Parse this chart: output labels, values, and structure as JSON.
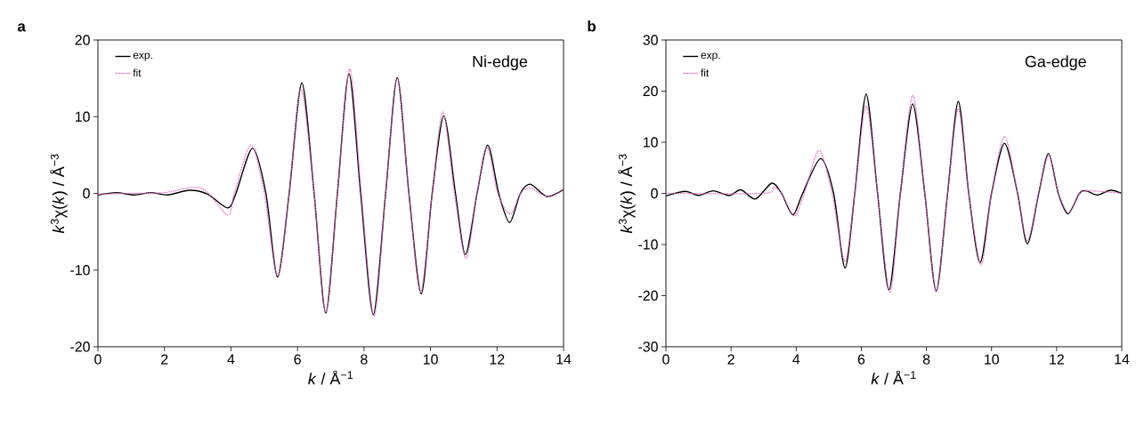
{
  "chart_data": [
    {
      "type": "line",
      "title": "a",
      "xlabel": "*k* / Å$^{−1}$",
      "ylabel": "*k*$^{3}$χ(*k*) / Å$^{−3}$",
      "annotations": [
        "Ni-edge"
      ],
      "xlim": [
        0,
        14
      ],
      "ylim": [
        -20,
        20
      ],
      "xticks": [
        0,
        2,
        4,
        6,
        8,
        10,
        12,
        14
      ],
      "yticks": [
        -20,
        -10,
        0,
        10,
        20
      ],
      "legend": "top left",
      "marker": "none",
      "series": [
        {
          "name": "exp.",
          "color": "#000000",
          "line_style": "solid",
          "x": [
            0,
            0.55,
            1.1,
            1.6,
            2.1,
            2.75,
            3.3,
            3.9,
            4.15,
            4.65,
            5.05,
            5.4,
            5.75,
            6.13,
            6.5,
            6.85,
            7.2,
            7.55,
            7.9,
            8.28,
            8.65,
            9.0,
            9.35,
            9.72,
            10.05,
            10.4,
            10.75,
            11.05,
            11.4,
            11.72,
            12.05,
            12.38,
            12.7,
            13.0,
            13.5,
            14
          ],
          "values": [
            -0.2,
            0.1,
            -0.2,
            0.1,
            -0.2,
            0.4,
            -0.1,
            -1.9,
            0,
            5.9,
            0,
            -10.9,
            0,
            14.4,
            0,
            -15.6,
            0,
            15.6,
            0,
            -15.8,
            0,
            15.1,
            0,
            -13.1,
            0,
            10.1,
            0,
            -8.0,
            0,
            6.3,
            0,
            -3.8,
            0,
            1.2,
            -0.4,
            0.5
          ]
        },
        {
          "name": "fit",
          "color": "#e066c0",
          "line_style": "dotted",
          "x": [
            0,
            1,
            2,
            3.1,
            3.9,
            4.1,
            4.6,
            5.0,
            5.4,
            5.75,
            6.1,
            6.5,
            6.85,
            7.2,
            7.57,
            7.92,
            8.3,
            8.65,
            9.0,
            9.35,
            9.7,
            10.05,
            10.37,
            10.72,
            11.07,
            11.4,
            11.7,
            12.02,
            12.4,
            12.7,
            13.0,
            13.5,
            14
          ],
          "values": [
            -0.1,
            0,
            0.1,
            0.7,
            -2.8,
            0,
            6.3,
            0,
            -10.7,
            0,
            13.6,
            0,
            -15.6,
            0,
            16.2,
            0,
            -16.0,
            0,
            15.0,
            0,
            -12.9,
            0,
            10.6,
            0,
            -8.5,
            0,
            6.0,
            0,
            -2.7,
            0,
            0.7,
            -0.4,
            0.5
          ]
        }
      ]
    },
    {
      "type": "line",
      "title": "b",
      "xlabel": "*k* / Å$^{−1}$",
      "ylabel": "*k*$^{3}$χ(*k*) / Å$^{−3}$",
      "annotations": [
        "Ga-edge"
      ],
      "xlim": [
        0,
        14
      ],
      "ylim": [
        -30,
        30
      ],
      "xticks": [
        0,
        2,
        4,
        6,
        8,
        10,
        12,
        14
      ],
      "yticks": [
        -30,
        -20,
        -10,
        0,
        10,
        20,
        30
      ],
      "legend": "top left",
      "marker": "none",
      "series": [
        {
          "name": "exp.",
          "color": "#000000",
          "line_style": "solid",
          "x": [
            0,
            0.6,
            1.0,
            1.45,
            1.95,
            2.3,
            2.75,
            3.25,
            3.55,
            3.9,
            4.2,
            4.75,
            5.15,
            5.5,
            5.8,
            6.15,
            6.5,
            6.85,
            7.2,
            7.58,
            7.95,
            8.3,
            8.65,
            8.98,
            9.3,
            9.65,
            10.0,
            10.4,
            10.8,
            11.1,
            11.45,
            11.75,
            12.05,
            12.35,
            12.7,
            12.9,
            13.25,
            13.65,
            14
          ],
          "values": [
            -0.5,
            0.4,
            -0.4,
            0.5,
            -0.4,
            0.7,
            -1.1,
            2.0,
            0,
            -4.2,
            0,
            6.8,
            0,
            -14.6,
            0,
            19.4,
            0,
            -18.9,
            0,
            17.5,
            0,
            -19.1,
            0,
            18.0,
            0,
            -13.6,
            0,
            9.8,
            0,
            -9.9,
            0,
            7.8,
            0,
            -4.0,
            0,
            0.5,
            -0.3,
            0.6,
            0
          ]
        },
        {
          "name": "fit",
          "color": "#e066c0",
          "line_style": "dotted",
          "x": [
            0,
            3.0,
            3.3,
            3.55,
            3.95,
            4.25,
            4.7,
            5.1,
            5.5,
            5.8,
            6.15,
            6.5,
            6.88,
            7.2,
            7.58,
            7.95,
            8.3,
            8.65,
            8.98,
            9.3,
            9.68,
            10.0,
            10.4,
            10.8,
            11.1,
            11.45,
            11.75,
            12.05,
            12.38,
            12.7,
            13.0,
            13.5,
            14
          ],
          "values": [
            0,
            0,
            1.2,
            0,
            -4.4,
            0,
            8.4,
            0,
            -13.3,
            0,
            17.1,
            0,
            -19.4,
            0,
            19.2,
            0,
            -19.0,
            0,
            16.5,
            0,
            -14.0,
            0,
            11.1,
            0,
            -9.3,
            0,
            7.4,
            0,
            -3.8,
            0,
            0.5,
            0.3,
            0
          ]
        }
      ]
    }
  ]
}
